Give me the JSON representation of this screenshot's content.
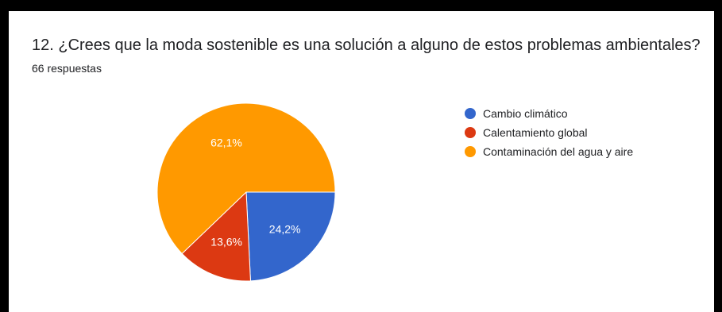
{
  "question": {
    "title": "12. ¿Crees que la moda sostenible es una solución a alguno de estos problemas ambientales?",
    "response_count": "66 respuestas"
  },
  "chart_data": {
    "type": "pie",
    "categories": [
      "Cambio climático",
      "Calentamiento global",
      "Contaminación del agua y aire"
    ],
    "values": [
      24.2,
      13.6,
      62.1
    ],
    "data_labels": [
      "24,2%",
      "13,6%",
      "62,1%"
    ],
    "colors": [
      "#3366cc",
      "#dc3912",
      "#ff9900"
    ],
    "legend_position": "right"
  }
}
